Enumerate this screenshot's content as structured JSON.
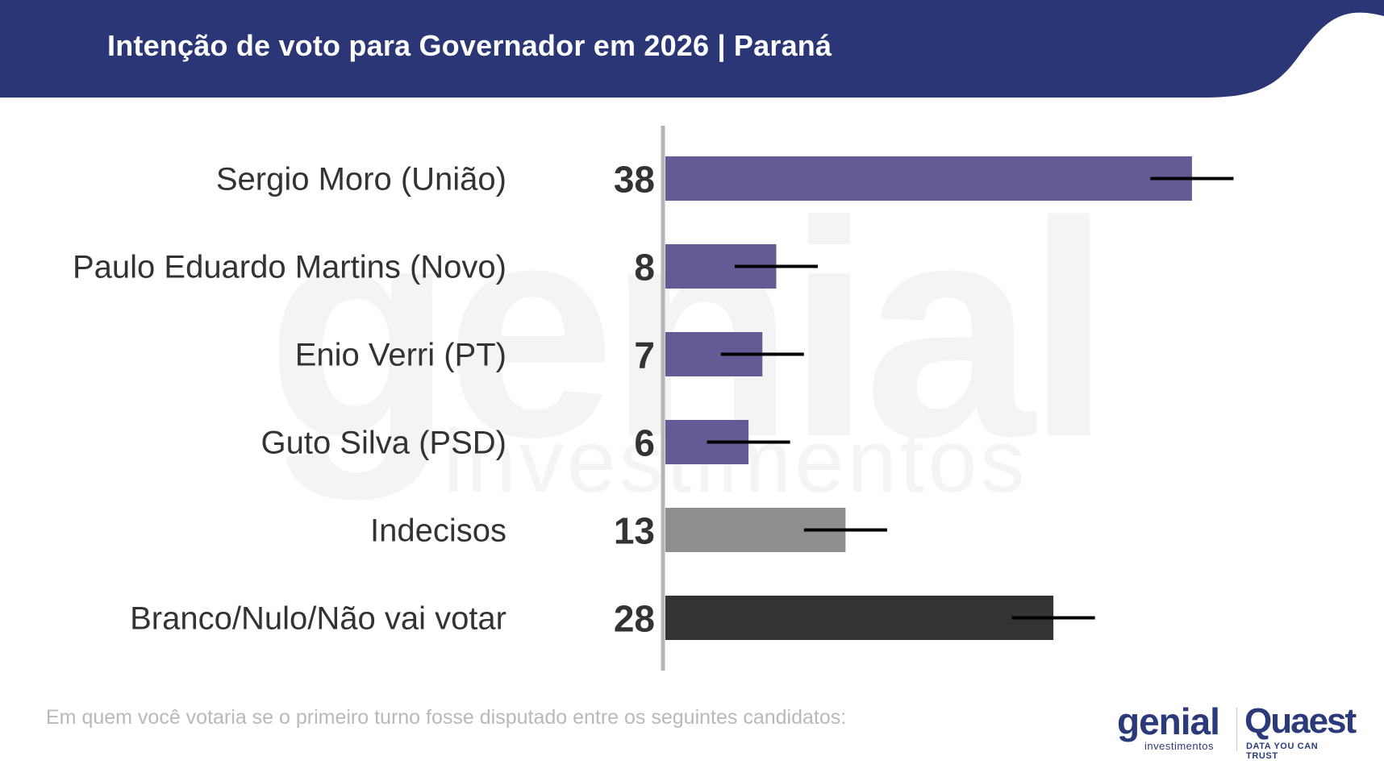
{
  "header": {
    "title": "Intenção de voto para Governador em 2026 | Paraná",
    "background_color": "#2b3677"
  },
  "chart_data": {
    "type": "bar",
    "orientation": "horizontal",
    "categories": [
      "Sergio Moro (União)",
      "Paulo Eduardo Martins (Novo)",
      "Enio Verri (PT)",
      "Guto Silva (PSD)",
      "Indecisos",
      "Branco/Nulo/Não vai votar"
    ],
    "values": [
      38,
      8,
      7,
      6,
      13,
      28
    ],
    "value_labels": [
      "38",
      "8",
      "7",
      "6",
      "13",
      "28"
    ],
    "error_margin": 3,
    "bar_colors": [
      "#635b96",
      "#635b96",
      "#635b96",
      "#635b96",
      "#8f8f8f",
      "#333333"
    ],
    "error_bar_color": "#000000",
    "axis_line_color": "#b5b5b5",
    "xlim": [
      0,
      44
    ],
    "grid": false,
    "legend": "none",
    "title": "Intenção de voto para Governador em 2026 | Paraná"
  },
  "footnote": "Em quem você votaria se o primeiro turno fosse disputado entre os seguintes candidatos:",
  "logos": {
    "genial": "genial",
    "genial_sub": "investimentos",
    "quaest": "Quaest",
    "quaest_sub": "DATA YOU CAN TRUST"
  },
  "watermark": {
    "main": "genial",
    "sub": "investimentos"
  }
}
